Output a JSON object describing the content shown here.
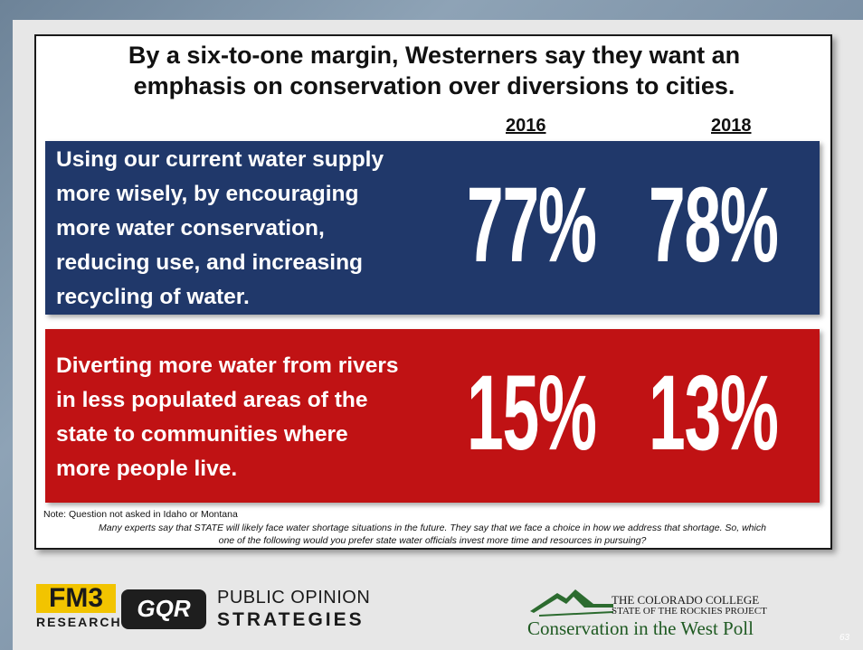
{
  "title": {
    "line1": "By a six-to-one margin, Westerners say they want an",
    "line2": "emphasis on conservation over diversions to cities."
  },
  "years": [
    "2016",
    "2018"
  ],
  "panels": [
    {
      "lines": [
        "Using our current water supply",
        "more wisely, by encouraging",
        "more water conservation,",
        "reducing use, and increasing",
        "recycling of water."
      ],
      "values": [
        "77%",
        "78%"
      ],
      "color": "#20386a"
    },
    {
      "lines": [
        "Diverting more water from rivers",
        "in less populated areas of the",
        "state to communities where",
        "more people live."
      ],
      "values": [
        "15%",
        "13%"
      ],
      "color": "#c01214"
    }
  ],
  "note": "Note: Question not asked in Idaho or Montana",
  "question": {
    "line1": "Many experts say that STATE will likely face water shortage situations in the future.  They say that we face a choice in how we address that shortage.  So, which",
    "line2": "one of the following would you prefer state water officials invest more time and resources in pursuing?"
  },
  "footer": {
    "fm3": "FM3",
    "fm3_sub": "RESEARCH",
    "gqr": "GQR",
    "pos_line1": "PUBLIC OPINION",
    "pos_line2": "STRATEGIES",
    "cc_line1": "THE COLORADO COLLEGE",
    "cc_line2": "STATE OF THE ROCKIES PROJECT",
    "cc_line3": "Conservation in the West Poll",
    "page_number": "63"
  }
}
